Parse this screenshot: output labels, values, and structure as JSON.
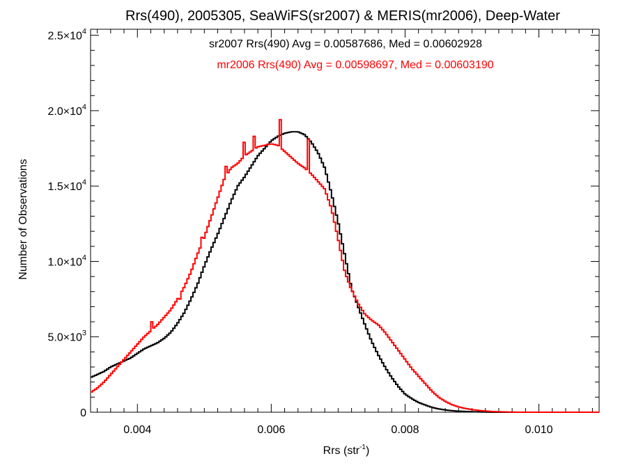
{
  "chart_data": {
    "type": "line",
    "title": "Rrs(490), 2005305, SeaWiFS(sr2007) & MERIS(mr2006), Deep-Water",
    "xlabel": "Rrs (str",
    "xlabel_sup": "-1",
    "xlabel_end": ")",
    "ylabel": "Number of Observations",
    "xlim": [
      0.0033,
      0.0109
    ],
    "ylim": [
      0,
      25400
    ],
    "xticks": [
      {
        "v": 0.004,
        "label": "0.004"
      },
      {
        "v": 0.006,
        "label": "0.006"
      },
      {
        "v": 0.008,
        "label": "0.008"
      },
      {
        "v": 0.01,
        "label": "0.010"
      }
    ],
    "yticks": [
      {
        "v": 0,
        "mant": "0",
        "exp": ""
      },
      {
        "v": 5000,
        "mant": "5.0×10",
        "exp": "3"
      },
      {
        "v": 10000,
        "mant": "1.0×10",
        "exp": "4"
      },
      {
        "v": 15000,
        "mant": "1.5×10",
        "exp": "4"
      },
      {
        "v": 20000,
        "mant": "2.0×10",
        "exp": "4"
      },
      {
        "v": 25000,
        "mant": "2.5×10",
        "exp": "4"
      }
    ],
    "grid": false,
    "legend_position": "top-center",
    "series": [
      {
        "name": "sr2007 Rrs(490) Avg = 0.00587686, Med = 0.00602928",
        "color": "#000000",
        "x": [
          0.0033,
          0.0034,
          0.0035,
          0.0036,
          0.0037,
          0.0038,
          0.0039,
          0.004,
          0.0041,
          0.0042,
          0.0043,
          0.0044,
          0.0045,
          0.0046,
          0.0047,
          0.0048,
          0.0049,
          0.005,
          0.0051,
          0.0052,
          0.0053,
          0.0054,
          0.0055,
          0.0056,
          0.0057,
          0.0058,
          0.0059,
          0.006,
          0.0061,
          0.0062,
          0.0063,
          0.0064,
          0.0065,
          0.0066,
          0.0067,
          0.0068,
          0.0069,
          0.007,
          0.0071,
          0.0072,
          0.0073,
          0.0074,
          0.0075,
          0.0076,
          0.0077,
          0.0078,
          0.0079,
          0.008,
          0.0081,
          0.0082,
          0.0083,
          0.0084,
          0.0085,
          0.0086,
          0.0087,
          0.0088,
          0.0089,
          0.009,
          0.0091,
          0.0092,
          0.0093,
          0.0094,
          0.0095,
          0.0096,
          0.0097,
          0.0098,
          0.0099,
          0.01,
          0.0101,
          0.0102,
          0.0103,
          0.0104,
          0.0105,
          0.0106,
          0.0107,
          0.0108,
          0.0109
        ],
        "y": [
          2300,
          2500,
          2700,
          3000,
          3200,
          3400,
          3600,
          3900,
          4200,
          4400,
          4600,
          4900,
          5300,
          5900,
          6600,
          7500,
          8500,
          9700,
          10800,
          11800,
          12900,
          14000,
          15000,
          15600,
          16300,
          17000,
          17500,
          18000,
          18300,
          18500,
          18600,
          18600,
          18400,
          17900,
          17200,
          16200,
          14500,
          12600,
          10400,
          8200,
          7000,
          5800,
          4700,
          3800,
          3000,
          2300,
          1700,
          1200,
          900,
          650,
          480,
          320,
          220,
          150,
          100,
          70,
          50,
          30,
          20,
          10,
          0,
          0,
          0,
          0,
          0,
          0,
          0,
          0,
          0,
          0,
          0,
          0,
          0,
          0,
          0,
          0,
          0
        ]
      },
      {
        "name": "mr2006 Rrs(490) Avg = 0.00598697, Med = 0.00603190",
        "color": "#ff0000",
        "x": [
          0.0033,
          0.0034,
          0.0035,
          0.0036,
          0.0037,
          0.0038,
          0.0039,
          0.004,
          0.0041,
          0.0042,
          0.0043,
          0.0044,
          0.0045,
          0.0046,
          0.0047,
          0.0048,
          0.0049,
          0.005,
          0.0051,
          0.0052,
          0.0053,
          0.0054,
          0.0055,
          0.0056,
          0.0057,
          0.0058,
          0.0059,
          0.006,
          0.0061,
          0.0062,
          0.0063,
          0.0064,
          0.0065,
          0.0066,
          0.0067,
          0.0068,
          0.0069,
          0.007,
          0.0071,
          0.0072,
          0.0073,
          0.0074,
          0.0075,
          0.0076,
          0.0077,
          0.0078,
          0.0079,
          0.008,
          0.0081,
          0.0082,
          0.0083,
          0.0084,
          0.0085,
          0.0086,
          0.0087,
          0.0088,
          0.0089,
          0.009,
          0.0091,
          0.0092,
          0.0093,
          0.0094,
          0.0095,
          0.0096,
          0.0097,
          0.0098,
          0.0099,
          0.01,
          0.0101,
          0.0102,
          0.0103,
          0.0104,
          0.0105,
          0.0106,
          0.0107,
          0.0108,
          0.0109
        ],
        "y": [
          1300,
          1600,
          2000,
          2500,
          3000,
          3500,
          4000,
          4500,
          5000,
          5400,
          5800,
          6300,
          6800,
          7500,
          8300,
          9300,
          10500,
          11600,
          12900,
          14200,
          15500,
          16200,
          16500,
          17000,
          17300,
          17600,
          17700,
          17800,
          17700,
          17300,
          16900,
          16500,
          16200,
          15800,
          15300,
          14800,
          13500,
          11500,
          9300,
          8100,
          7200,
          6500,
          6100,
          5800,
          5300,
          4700,
          4100,
          3500,
          2900,
          2400,
          1900,
          1400,
          1000,
          720,
          500,
          350,
          250,
          170,
          120,
          80,
          50,
          30,
          20,
          10,
          0,
          0,
          0,
          0,
          0,
          0,
          0,
          0,
          0,
          0,
          0,
          0,
          0
        ],
        "spikes": [
          {
            "x": 0.00421,
            "y": 6000
          },
          {
            "x": 0.00462,
            "y": 7500
          },
          {
            "x": 0.00496,
            "y": 11600
          },
          {
            "x": 0.00531,
            "y": 16300
          },
          {
            "x": 0.00558,
            "y": 17900
          },
          {
            "x": 0.00574,
            "y": 18300
          },
          {
            "x": 0.00612,
            "y": 19400
          },
          {
            "x": 0.00654,
            "y": 18100
          },
          {
            "x": 0.00722,
            "y": 8000
          }
        ]
      }
    ]
  }
}
